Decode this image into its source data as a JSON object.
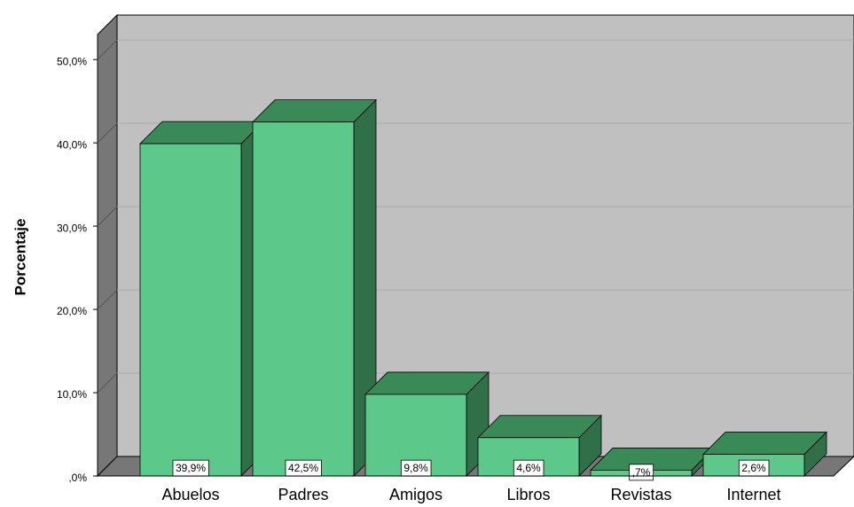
{
  "chart_data": {
    "type": "bar3d",
    "y_axis_label": "Porcentaje",
    "categories": [
      "Abuelos",
      "Padres",
      "Amigos",
      "Libros",
      "Revistas",
      "Internet"
    ],
    "values": [
      39.9,
      42.5,
      9.8,
      4.6,
      0.7,
      2.6
    ],
    "value_labels": [
      "39,9%",
      "42,5%",
      "9,8%",
      "4,6%",
      ",7%",
      "2,6%"
    ],
    "color": "#5cc98a",
    "ylim": [
      0,
      53
    ],
    "yticks": [
      {
        "value": 0,
        "label": ",0%"
      },
      {
        "value": 10,
        "label": "10,0%"
      },
      {
        "value": 20,
        "label": "20,0%"
      },
      {
        "value": 30,
        "label": "30,0%"
      },
      {
        "value": 40,
        "label": "40,0%"
      },
      {
        "value": 50,
        "label": "50,0%"
      }
    ],
    "grid": true
  }
}
